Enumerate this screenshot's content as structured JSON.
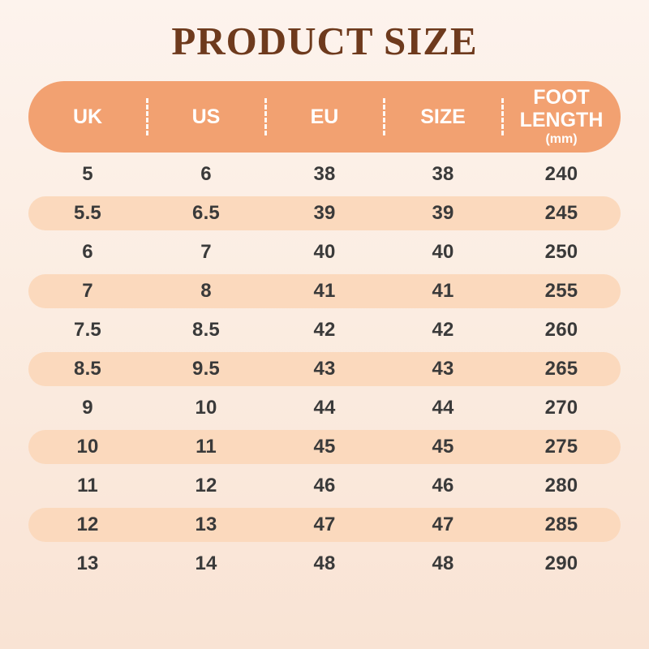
{
  "title": "PRODUCT SIZE",
  "colors": {
    "bg_top": "#FDF3ED",
    "bg_mid": "#FBEDE2",
    "bg_bottom": "#F9E3D4",
    "header_bg": "#F2A171",
    "header_text": "#FFFFFF",
    "row_alt_bg": "#FBD9BD",
    "title_color": "#6E3A1D",
    "cell_text": "#3A3A3A"
  },
  "table": {
    "columns": [
      {
        "label": "UK"
      },
      {
        "label": "US"
      },
      {
        "label": "EU"
      },
      {
        "label": "SIZE"
      },
      {
        "label": "FOOT LENGTH",
        "sub": "(mm)"
      }
    ],
    "rows": [
      [
        "5",
        "6",
        "38",
        "38",
        "240"
      ],
      [
        "5.5",
        "6.5",
        "39",
        "39",
        "245"
      ],
      [
        "6",
        "7",
        "40",
        "40",
        "250"
      ],
      [
        "7",
        "8",
        "41",
        "41",
        "255"
      ],
      [
        "7.5",
        "8.5",
        "42",
        "42",
        "260"
      ],
      [
        "8.5",
        "9.5",
        "43",
        "43",
        "265"
      ],
      [
        "9",
        "10",
        "44",
        "44",
        "270"
      ],
      [
        "10",
        "11",
        "45",
        "45",
        "275"
      ],
      [
        "11",
        "12",
        "46",
        "46",
        "280"
      ],
      [
        "12",
        "13",
        "47",
        "47",
        "285"
      ],
      [
        "13",
        "14",
        "48",
        "48",
        "290"
      ]
    ]
  },
  "chart_data": {
    "type": "table",
    "title": "PRODUCT SIZE",
    "columns": [
      "UK",
      "US",
      "EU",
      "SIZE",
      "FOOT LENGTH (mm)"
    ],
    "rows": [
      [
        "5",
        "6",
        "38",
        "38",
        "240"
      ],
      [
        "5.5",
        "6.5",
        "39",
        "39",
        "245"
      ],
      [
        "6",
        "7",
        "40",
        "40",
        "250"
      ],
      [
        "7",
        "8",
        "41",
        "41",
        "255"
      ],
      [
        "7.5",
        "8.5",
        "42",
        "42",
        "260"
      ],
      [
        "8.5",
        "9.5",
        "43",
        "43",
        "265"
      ],
      [
        "9",
        "10",
        "44",
        "44",
        "270"
      ],
      [
        "10",
        "11",
        "45",
        "45",
        "275"
      ],
      [
        "11",
        "12",
        "46",
        "46",
        "280"
      ],
      [
        "12",
        "13",
        "47",
        "47",
        "285"
      ],
      [
        "13",
        "14",
        "48",
        "48",
        "290"
      ]
    ]
  }
}
